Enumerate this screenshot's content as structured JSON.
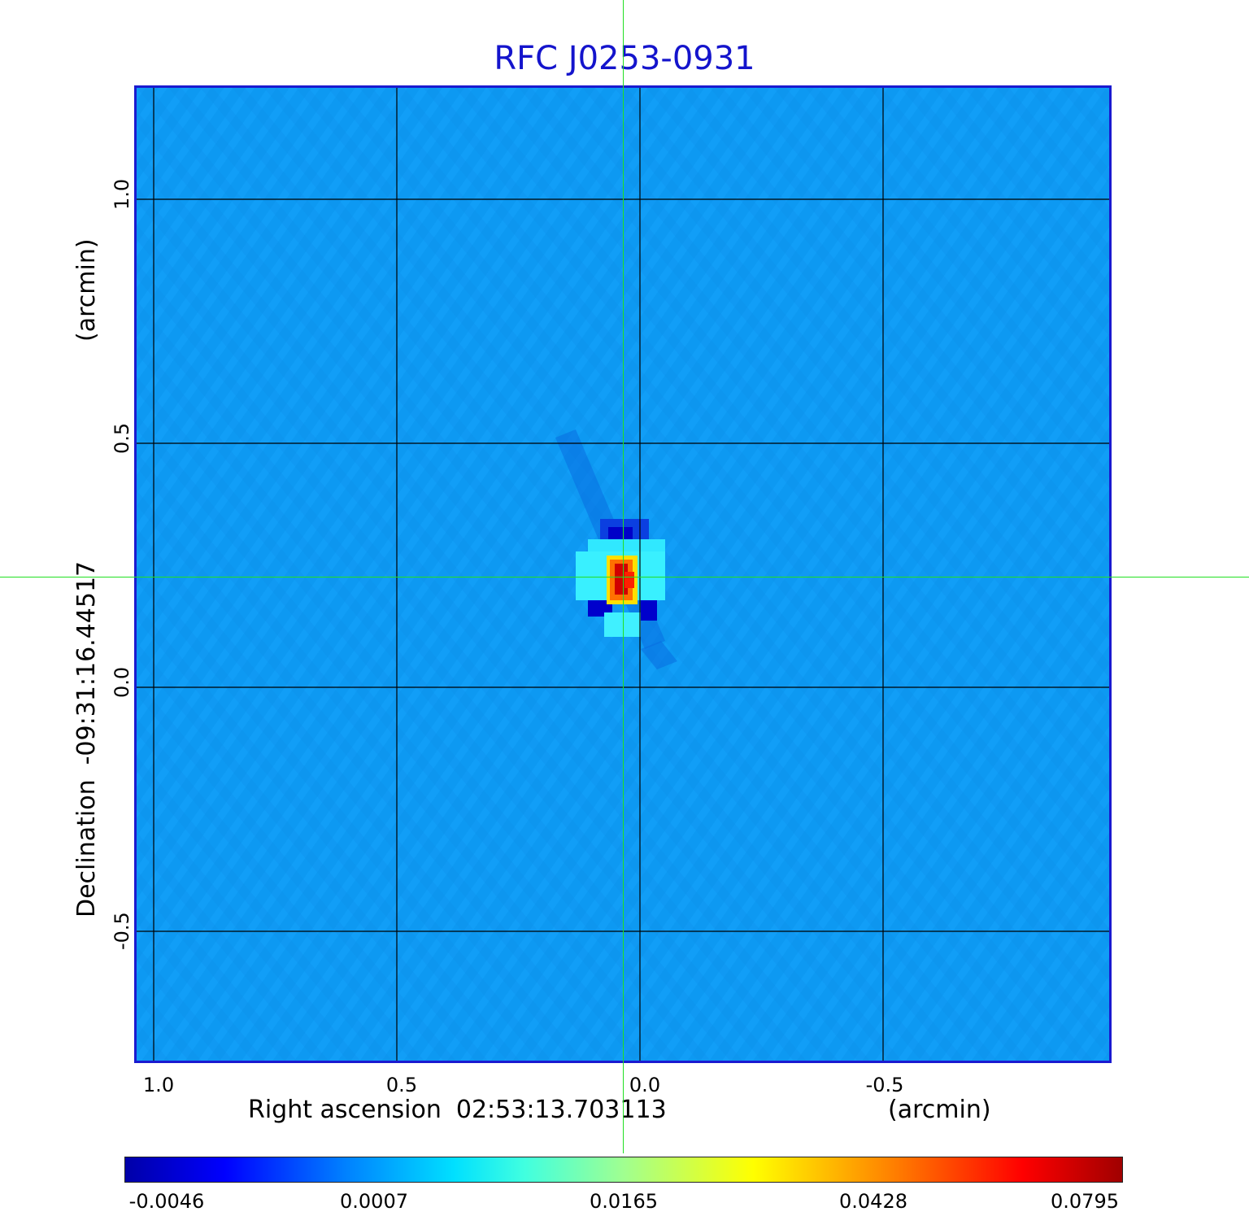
{
  "title": "RFC J0253-0931",
  "axes": {
    "x": {
      "label": "Right ascension",
      "reference": "02:53:13.703113",
      "unit": "(arcmin)",
      "ticks": [
        "1.0",
        "0.5",
        "0.0",
        "-0.5"
      ]
    },
    "y": {
      "label": "Declination",
      "reference": "-09:31:16.44517",
      "unit": "(arcmin)",
      "ticks": [
        "1.0",
        "0.5",
        "0.0",
        "-0.5"
      ]
    }
  },
  "colorbar": {
    "ticks": [
      "-0.0046",
      "0.0007",
      "0.0165",
      "0.0428",
      "0.0795"
    ]
  },
  "colors": {
    "title": "#1414cc",
    "background_map": "#0d99f2",
    "crosshair": "#22e022",
    "source_peak": "#d00000"
  }
}
